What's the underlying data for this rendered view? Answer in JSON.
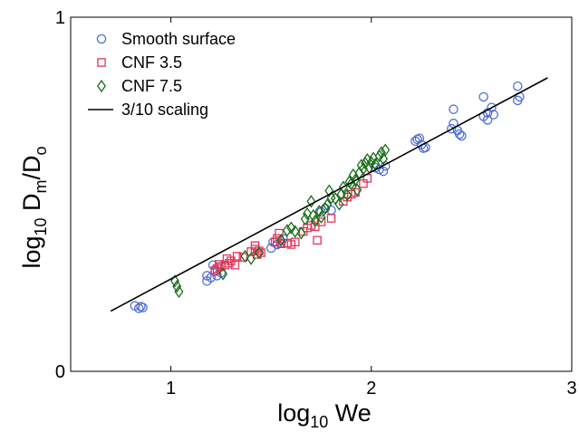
{
  "chart_data": {
    "type": "scatter",
    "xlabel": {
      "main": "log",
      "sub": "10",
      "tail": " We"
    },
    "ylabel": {
      "main": "log",
      "sub1": "10",
      "mid": " D",
      "sub2": "m",
      "mid2": "/D",
      "sub3": "o"
    },
    "xlim": [
      0.5,
      3.0
    ],
    "ylim": [
      0.0,
      1.0
    ],
    "xticks": [
      "1",
      "2",
      "3"
    ],
    "yticks": [
      "0",
      "1"
    ],
    "xtick_values": [
      1,
      2,
      3
    ],
    "ytick_values": [
      0,
      1
    ],
    "grid": false,
    "legend_position": "top-left",
    "series": [
      {
        "name": "Smooth surface",
        "marker": "circle",
        "color": "#4f6fd6",
        "points": [
          [
            0.82,
            0.185
          ],
          [
            0.84,
            0.178
          ],
          [
            0.86,
            0.18
          ],
          [
            0.85,
            0.183
          ],
          [
            1.18,
            0.255
          ],
          [
            1.18,
            0.27
          ],
          [
            1.2,
            0.265
          ],
          [
            1.22,
            0.282
          ],
          [
            1.21,
            0.3
          ],
          [
            1.24,
            0.295
          ],
          [
            1.25,
            0.278
          ],
          [
            1.23,
            0.27
          ],
          [
            1.5,
            0.348
          ],
          [
            1.51,
            0.365
          ],
          [
            1.53,
            0.358
          ],
          [
            1.55,
            0.362
          ],
          [
            1.56,
            0.375
          ],
          [
            1.75,
            0.45
          ],
          [
            1.77,
            0.46
          ],
          [
            1.8,
            0.455
          ],
          [
            2.02,
            0.575
          ],
          [
            2.04,
            0.57
          ],
          [
            2.06,
            0.565
          ],
          [
            2.07,
            0.58
          ],
          [
            2.23,
            0.655
          ],
          [
            2.24,
            0.658
          ],
          [
            2.22,
            0.65
          ],
          [
            2.25,
            0.64
          ],
          [
            2.26,
            0.63
          ],
          [
            2.27,
            0.632
          ],
          [
            2.4,
            0.685
          ],
          [
            2.41,
            0.7
          ],
          [
            2.41,
            0.74
          ],
          [
            2.43,
            0.68
          ],
          [
            2.44,
            0.67
          ],
          [
            2.45,
            0.665
          ],
          [
            2.56,
            0.72
          ],
          [
            2.58,
            0.71
          ],
          [
            2.58,
            0.73
          ],
          [
            2.6,
            0.745
          ],
          [
            2.61,
            0.725
          ],
          [
            2.56,
            0.775
          ],
          [
            2.73,
            0.765
          ],
          [
            2.74,
            0.775
          ],
          [
            2.73,
            0.805
          ]
        ]
      },
      {
        "name": "CNF 3.5",
        "marker": "square",
        "color": "#e0345a",
        "points": [
          [
            1.22,
            0.285
          ],
          [
            1.23,
            0.29
          ],
          [
            1.25,
            0.295
          ],
          [
            1.24,
            0.302
          ],
          [
            1.27,
            0.3
          ],
          [
            1.29,
            0.305
          ],
          [
            1.3,
            0.312
          ],
          [
            1.32,
            0.3
          ],
          [
            1.28,
            0.318
          ],
          [
            1.33,
            0.325
          ],
          [
            1.36,
            0.322
          ],
          [
            1.4,
            0.338
          ],
          [
            1.42,
            0.345
          ],
          [
            1.43,
            0.33
          ],
          [
            1.44,
            0.34
          ],
          [
            1.45,
            0.335
          ],
          [
            1.42,
            0.355
          ],
          [
            1.52,
            0.365
          ],
          [
            1.53,
            0.375
          ],
          [
            1.55,
            0.36
          ],
          [
            1.54,
            0.39
          ],
          [
            1.58,
            0.362
          ],
          [
            1.6,
            0.358
          ],
          [
            1.62,
            0.365
          ],
          [
            1.66,
            0.395
          ],
          [
            1.68,
            0.405
          ],
          [
            1.7,
            0.412
          ],
          [
            1.72,
            0.408
          ],
          [
            1.73,
            0.37
          ],
          [
            1.75,
            0.422
          ],
          [
            1.8,
            0.432
          ],
          [
            1.86,
            0.48
          ],
          [
            1.88,
            0.492
          ],
          [
            1.9,
            0.5
          ],
          [
            1.92,
            0.505
          ],
          [
            1.96,
            0.53
          ],
          [
            1.98,
            0.545
          ]
        ]
      },
      {
        "name": "CNF 7.5",
        "marker": "diamond",
        "color": "#1a6e1a",
        "points": [
          [
            1.02,
            0.255
          ],
          [
            1.03,
            0.24
          ],
          [
            1.04,
            0.225
          ],
          [
            1.26,
            0.275
          ],
          [
            1.37,
            0.325
          ],
          [
            1.4,
            0.318
          ],
          [
            1.44,
            0.335
          ],
          [
            1.55,
            0.37
          ],
          [
            1.58,
            0.398
          ],
          [
            1.6,
            0.405
          ],
          [
            1.62,
            0.395
          ],
          [
            1.65,
            0.39
          ],
          [
            1.67,
            0.43
          ],
          [
            1.68,
            0.445
          ],
          [
            1.7,
            0.48
          ],
          [
            1.71,
            0.44
          ],
          [
            1.72,
            0.425
          ],
          [
            1.74,
            0.452
          ],
          [
            1.75,
            0.435
          ],
          [
            1.77,
            0.46
          ],
          [
            1.78,
            0.47
          ],
          [
            1.79,
            0.51
          ],
          [
            1.8,
            0.49
          ],
          [
            1.82,
            0.488
          ],
          [
            1.84,
            0.472
          ],
          [
            1.85,
            0.5
          ],
          [
            1.86,
            0.52
          ],
          [
            1.88,
            0.498
          ],
          [
            1.89,
            0.535
          ],
          [
            1.9,
            0.53
          ],
          [
            1.91,
            0.555
          ],
          [
            1.92,
            0.54
          ],
          [
            1.93,
            0.512
          ],
          [
            1.94,
            0.56
          ],
          [
            1.95,
            0.582
          ],
          [
            1.96,
            0.572
          ],
          [
            1.97,
            0.588
          ],
          [
            1.98,
            0.598
          ],
          [
            1.99,
            0.575
          ],
          [
            2.0,
            0.59
          ],
          [
            2.01,
            0.602
          ],
          [
            2.02,
            0.585
          ],
          [
            2.04,
            0.608
          ],
          [
            2.05,
            0.618
          ],
          [
            2.06,
            0.6
          ],
          [
            2.07,
            0.625
          ]
        ]
      },
      {
        "name": "3/10 scaling",
        "type": "line",
        "color": "#000000",
        "points": [
          [
            0.7,
            0.17
          ],
          [
            2.88,
            0.829
          ]
        ]
      }
    ]
  }
}
